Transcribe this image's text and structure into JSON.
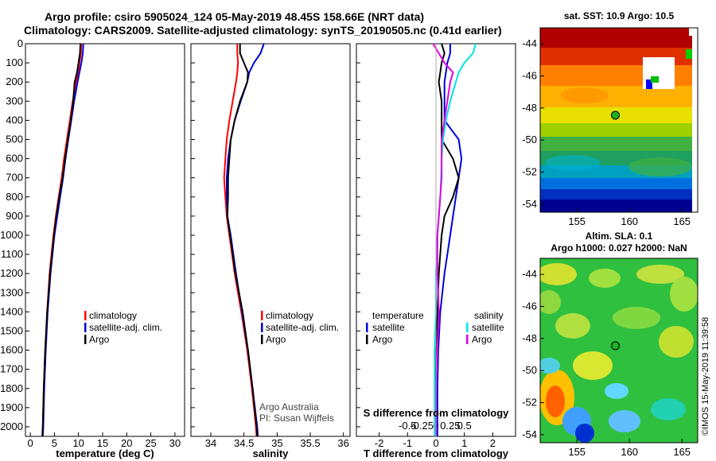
{
  "title": {
    "line1": "Argo profile: csiro 5905024_124 05-May-2019 48.45S 158.66E (NRT data)",
    "line2": "Climatology: CARS2009. Satellite-adjusted climatology: synTS_20190505.nc (0.41d earlier)"
  },
  "colors": {
    "climatology": "#ff0000",
    "satellite": "#0000dd",
    "argo": "#000000",
    "cyan": "#00e5e5",
    "magenta": "#e000e0"
  },
  "chart_data": [
    {
      "type": "line",
      "xlabel": "temperature (deg C)",
      "ylim": [
        2050,
        0
      ],
      "xlim": [
        -1,
        32
      ],
      "xticks": [
        "0",
        "5",
        "10",
        "15",
        "20",
        "25",
        "30"
      ],
      "yticks": [
        "0",
        "100",
        "200",
        "300",
        "400",
        "500",
        "600",
        "700",
        "800",
        "900",
        "1000",
        "1100",
        "1200",
        "1300",
        "1400",
        "1500",
        "1600",
        "1700",
        "1800",
        "1900",
        "2000"
      ],
      "legend": [
        "climatology",
        "satellite-adj. clim.",
        "Argo"
      ],
      "depth": [
        0,
        50,
        100,
        150,
        200,
        300,
        400,
        500,
        600,
        700,
        800,
        900,
        1000,
        1200,
        1400,
        1600,
        1800,
        2000,
        2050
      ],
      "series": [
        {
          "name": "climatology",
          "values": [
            10.6,
            10.5,
            10.2,
            9.9,
            9.5,
            8.8,
            8.2,
            7.6,
            7.0,
            6.5,
            5.9,
            5.3,
            4.8,
            4.0,
            3.5,
            3.1,
            2.8,
            2.6,
            2.5
          ]
        },
        {
          "name": "satellite-adj. clim.",
          "values": [
            11.0,
            10.9,
            10.6,
            10.2,
            9.8,
            9.1,
            8.5,
            7.9,
            7.3,
            6.8,
            6.2,
            5.6,
            5.0,
            4.2,
            3.6,
            3.2,
            2.9,
            2.7,
            2.6
          ]
        },
        {
          "name": "Argo",
          "values": [
            10.4,
            10.3,
            10.0,
            9.7,
            9.2,
            8.9,
            8.4,
            7.8,
            7.2,
            6.7,
            6.0,
            5.4,
            4.9,
            4.1,
            3.5,
            3.1,
            2.8,
            2.6,
            2.5
          ]
        }
      ]
    },
    {
      "type": "line",
      "xlabel": "salinity",
      "ylim": [
        2050,
        0
      ],
      "xlim": [
        33.7,
        36.1
      ],
      "xticks": [
        "34",
        "34.5",
        "35",
        "35.5",
        "36"
      ],
      "legend": [
        "climatology",
        "satellite-adj. clim.",
        "Argo"
      ],
      "notes": [
        "Argo Australia",
        "PI: Susan Wijffels"
      ],
      "depth": [
        0,
        50,
        100,
        150,
        200,
        300,
        400,
        500,
        600,
        700,
        800,
        900,
        1000,
        1200,
        1400,
        1600,
        1800,
        2000,
        2050
      ],
      "series": [
        {
          "name": "climatology",
          "values": [
            34.4,
            34.4,
            34.41,
            34.4,
            34.38,
            34.33,
            34.28,
            34.24,
            34.22,
            34.2,
            34.22,
            34.24,
            34.28,
            34.36,
            34.46,
            34.55,
            34.62,
            34.68,
            34.69
          ]
        },
        {
          "name": "satellite-adj. clim.",
          "values": [
            34.8,
            34.75,
            34.65,
            34.58,
            34.55,
            34.45,
            34.36,
            34.3,
            34.26,
            34.24,
            34.24,
            34.25,
            34.3,
            34.38,
            34.47,
            34.56,
            34.63,
            34.7,
            34.71
          ]
        },
        {
          "name": "Argo",
          "values": [
            34.44,
            34.44,
            34.5,
            34.56,
            34.55,
            34.44,
            34.36,
            34.3,
            34.28,
            34.26,
            34.26,
            34.25,
            34.29,
            34.37,
            34.48,
            34.56,
            34.63,
            34.69,
            34.7
          ]
        }
      ]
    },
    {
      "type": "line",
      "xlabel": "T difference from climatology",
      "xlabel2": "S difference from climatology",
      "ylim": [
        2050,
        0
      ],
      "xlim": [
        -2.8,
        2.8
      ],
      "xticks": [
        "-2",
        "-1",
        "0",
        "1",
        "2"
      ],
      "xticks2": [
        "-0.5",
        "-0.25",
        "0",
        "0.25",
        "0.5"
      ],
      "legend_left": {
        "title": "temperature",
        "items": [
          "satellite",
          "Argo"
        ]
      },
      "legend_right": {
        "title": "salinity",
        "items": [
          "satellite",
          "Argo"
        ]
      },
      "depth": [
        0,
        50,
        100,
        150,
        200,
        300,
        400,
        500,
        600,
        700,
        800,
        900,
        1000,
        1200,
        1400,
        1600,
        1800,
        2000,
        2050
      ],
      "series": [
        {
          "name": "temperature satellite",
          "values": [
            0.5,
            0.5,
            0.4,
            0.35,
            0.3,
            0.3,
            0.3,
            0.8,
            0.9,
            0.8,
            0.7,
            0.6,
            0.5,
            0.3,
            0.15,
            0.08,
            0.05,
            0.05,
            0.05
          ]
        },
        {
          "name": "temperature Argo",
          "values": [
            0.2,
            0.3,
            0.2,
            0.15,
            0.1,
            0.2,
            0.2,
            0.2,
            0.6,
            0.8,
            0.6,
            0.3,
            0.2,
            0.1,
            0.05,
            0.0,
            0.0,
            0.0,
            0.0
          ]
        },
        {
          "name": "salinity satellite",
          "values": [
            1.4,
            1.3,
            1.0,
            0.8,
            0.7,
            0.5,
            0.35,
            0.25,
            0.2,
            0.18,
            0.15,
            0.1,
            0.05,
            0.0,
            0.0,
            -0.05,
            -0.05,
            -0.05,
            -0.05
          ]
        },
        {
          "name": "salinity Argo",
          "values": [
            -0.1,
            0.1,
            0.3,
            0.6,
            0.5,
            0.4,
            0.3,
            0.2,
            0.2,
            0.2,
            0.15,
            0.1,
            0.05,
            0.05,
            0.1,
            0.05,
            0.0,
            0.0,
            0.0
          ]
        }
      ]
    }
  ],
  "maps": {
    "sst": {
      "title": "sat. SST: 10.9 Argo: 10.5",
      "xticks": [
        "155",
        "160",
        "165"
      ],
      "yticks": [
        "-44",
        "-46",
        "-48",
        "-50",
        "-52",
        "-54"
      ]
    },
    "sla": {
      "title1": "Altim. SLA: 0.1",
      "title2": "Argo h1000: 0.027 h2000: NaN",
      "xticks": [
        "155",
        "160",
        "165"
      ],
      "yticks": [
        "-44",
        "-46",
        "-48",
        "-50",
        "-52",
        "-54"
      ]
    },
    "profile_position": {
      "lon": 158.66,
      "lat": -48.45
    }
  },
  "stamp": "©IMOS 15-May-2019 11:39:58"
}
